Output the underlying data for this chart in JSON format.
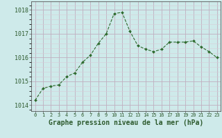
{
  "x": [
    0,
    1,
    2,
    3,
    4,
    5,
    6,
    7,
    8,
    9,
    10,
    11,
    12,
    13,
    14,
    15,
    16,
    17,
    18,
    19,
    20,
    21,
    22,
    23
  ],
  "y": [
    1014.2,
    1014.7,
    1014.8,
    1014.85,
    1015.2,
    1015.35,
    1015.8,
    1016.1,
    1016.6,
    1017.0,
    1017.85,
    1017.9,
    1017.1,
    1016.5,
    1016.35,
    1016.25,
    1016.35,
    1016.65,
    1016.65,
    1016.65,
    1016.7,
    1016.45,
    1016.25,
    1016.0
  ],
  "line_color": "#2d6a2d",
  "marker": "D",
  "marker_size": 2.0,
  "bg_color": "#ceeaea",
  "grid_color_major": "#c0afc0",
  "grid_color_minor": "#d8ccd8",
  "xlabel": "Graphe pression niveau de la mer (hPa)",
  "xlabel_fontsize": 7.0,
  "ylabel_ticks": [
    1014,
    1015,
    1016,
    1017,
    1018
  ],
  "xlim": [
    -0.5,
    23.5
  ],
  "ylim": [
    1013.75,
    1018.35
  ],
  "xtick_labels": [
    "0",
    "1",
    "2",
    "3",
    "4",
    "5",
    "6",
    "7",
    "8",
    "9",
    "10",
    "11",
    "12",
    "13",
    "14",
    "15",
    "16",
    "17",
    "18",
    "19",
    "20",
    "21",
    "22",
    "23"
  ],
  "spine_color": "#555555",
  "text_color": "#2d5a2d",
  "ytick_fontsize": 6.0,
  "xtick_fontsize": 5.0
}
